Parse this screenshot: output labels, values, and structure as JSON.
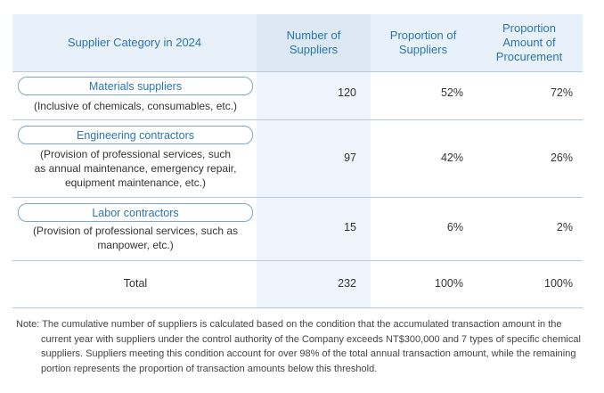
{
  "header": {
    "category": "Supplier Category in 2024",
    "number": "Number of\nSuppliers",
    "proportion": "Proportion of\nSuppliers",
    "amount": "Proportion\nAmount of\nProcurement"
  },
  "rows": [
    {
      "name": "Materials suppliers",
      "desc": "(Inclusive of chemicals, consumables, etc.)",
      "number": "120",
      "proportion": "52%",
      "amount": "72%"
    },
    {
      "name": "Engineering contractors",
      "desc": "(Provision of professional services, such\nas annual maintenance, emergency repair,\nequipment maintenance, etc.)",
      "number": "97",
      "proportion": "42%",
      "amount": "26%"
    },
    {
      "name": "Labor contractors",
      "desc": "(Provision of professional services, such as\nmanpower, etc.)",
      "number": "15",
      "proportion": "6%",
      "amount": "2%"
    }
  ],
  "total": {
    "label": "Total",
    "number": "232",
    "proportion": "100%",
    "amount": "100%"
  },
  "note": "Note: The cumulative number of suppliers is calculated based on the condition that the accumulated transaction amount in the current year with suppliers under the control authority of the Company exceeds NT$300,000 and 7 types of specific  chemical suppliers. Suppliers meeting this condition account for over 98% of the total annual transaction amount, while the remaining portion represents the proportion of transaction amounts below this threshold."
}
